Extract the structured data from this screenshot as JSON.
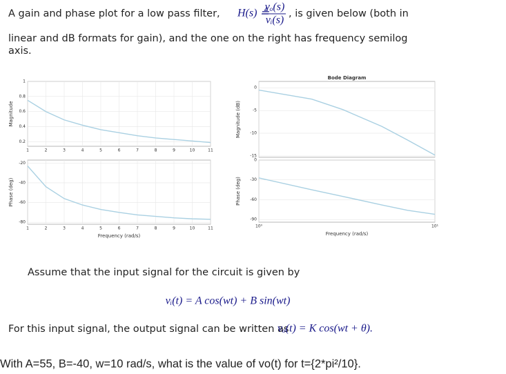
{
  "document": {
    "intro": [
      "A gain and phase plot for a low pass filter,",
      ", is given below (both in",
      "linear and dB formats for gain), and the one on the right has frequency semilog",
      "axis."
    ],
    "transfer": {
      "lhs": "H(s) ≜",
      "numerator": "vₒ(s)",
      "denominator": "vᵢ(s)"
    },
    "assume": "Assume that the input signal for the circuit is given by",
    "input_eq": "vᵢ(t) = A cos(wt) + B sin(wt)",
    "output_text": "For this input signal, the output signal can be written as",
    "output_eq": "vₒ(t) = K cos(wt + θ).",
    "question": "With A=55, B=-40, w=10 rad/s, what is the value of vo(t) for t={2*pi²/10}."
  },
  "chart_data": [
    {
      "type": "line",
      "ylabel": "Magnitude",
      "x": [
        1,
        2,
        3,
        4,
        5,
        6,
        7,
        8,
        9,
        10,
        11
      ],
      "series": [
        {
          "color": "#a9d0e2",
          "values": [
            0.75,
            0.6,
            0.49,
            0.42,
            0.36,
            0.32,
            0.28,
            0.25,
            0.23,
            0.21,
            0.19
          ]
        }
      ],
      "xlim": [
        1,
        11
      ],
      "ylim": [
        0.14,
        1
      ],
      "xticks": [
        1,
        2,
        3,
        4,
        5,
        6,
        7,
        8,
        9,
        10,
        11
      ],
      "yticks": [
        0.2,
        0.4,
        0.6,
        0.8,
        1
      ],
      "grid": true
    },
    {
      "type": "line",
      "ylabel": "Phase (deg)",
      "xlabel": "Frequency (rad/s)",
      "x": [
        1,
        2,
        3,
        4,
        5,
        6,
        7,
        8,
        9,
        10,
        11
      ],
      "series": [
        {
          "color": "#a9d0e2",
          "values": [
            -23,
            -44,
            -56,
            -62.5,
            -67,
            -70,
            -72.5,
            -74,
            -75.5,
            -76.5,
            -77
          ]
        }
      ],
      "xlim": [
        1,
        11
      ],
      "ylim": [
        -82,
        -17
      ],
      "xticks": [
        1,
        2,
        3,
        4,
        5,
        6,
        7,
        8,
        9,
        10,
        11
      ],
      "yticks": [
        -20,
        -40,
        -60,
        -80
      ],
      "grid": true
    },
    {
      "type": "line",
      "title": "Bode Diagram",
      "ylabel": "Magnitude (dB)",
      "x": [
        1,
        2,
        3,
        5,
        7,
        10
      ],
      "series": [
        {
          "color": "#a9d0e2",
          "values": [
            -0.5,
            -2.5,
            -4.8,
            -8.5,
            -11.5,
            -14.8
          ]
        }
      ],
      "xlim": [
        1,
        10
      ],
      "ylim": [
        -15.3,
        1.4
      ],
      "log_x": true,
      "xticks": [
        {
          "value": 1,
          "label": "10⁰"
        },
        {
          "value": 10,
          "label": "10¹"
        }
      ],
      "yticks": [
        0,
        -5,
        -10,
        -15
      ],
      "grid": true
    },
    {
      "type": "line",
      "ylabel": "Phase (deg)",
      "xlabel": "Frequency (rad/s)",
      "x": [
        1,
        2,
        3,
        5,
        7,
        10
      ],
      "series": [
        {
          "color": "#a9d0e2",
          "values": [
            -27,
            -45,
            -55,
            -68,
            -76,
            -82
          ]
        }
      ],
      "xlim": [
        1,
        10
      ],
      "ylim": [
        -94,
        0
      ],
      "log_x": true,
      "xticks": [
        {
          "value": 1,
          "label": "10⁰"
        },
        {
          "value": 10,
          "label": "10¹"
        }
      ],
      "yticks": [
        0,
        -30,
        -60,
        -90
      ],
      "grid": true
    }
  ]
}
